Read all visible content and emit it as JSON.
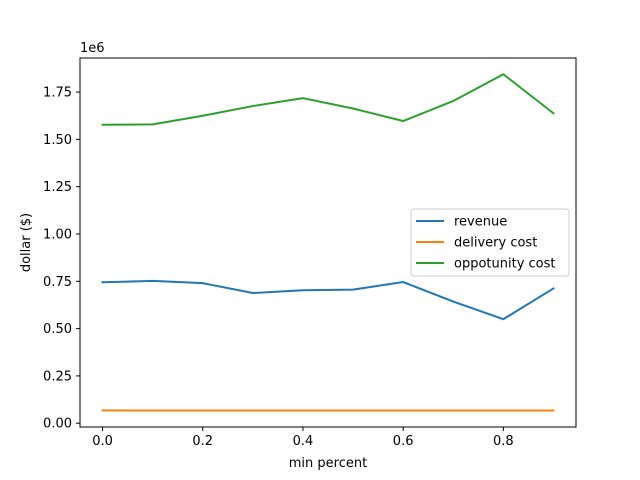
{
  "chart_data": {
    "type": "line",
    "title": "",
    "xlabel": "min percent",
    "ylabel": "dollar ($)",
    "y_multiplier_label": "1e6",
    "xlim": [
      -0.045,
      0.945
    ],
    "ylim": [
      -0.02,
      1.93
    ],
    "x_ticks": [
      0.0,
      0.2,
      0.4,
      0.6,
      0.8
    ],
    "x_tick_labels": [
      "0.0",
      "0.2",
      "0.4",
      "0.6",
      "0.8"
    ],
    "y_ticks": [
      0.0,
      0.25,
      0.5,
      0.75,
      1.0,
      1.25,
      1.5,
      1.75
    ],
    "y_tick_labels": [
      "0.00",
      "0.25",
      "0.50",
      "0.75",
      "1.00",
      "1.25",
      "1.50",
      "1.75"
    ],
    "grid": false,
    "legend_position": "center-right",
    "x": [
      0.0,
      0.1,
      0.2,
      0.3,
      0.4,
      0.5,
      0.6,
      0.7,
      0.8,
      0.9
    ],
    "series": [
      {
        "name": "revenue",
        "color": "#1f77b4",
        "values": [
          0.745,
          0.752,
          0.74,
          0.688,
          0.703,
          0.706,
          0.746,
          0.643,
          0.55,
          0.712
        ]
      },
      {
        "name": "delivery cost",
        "color": "#ff7f0e",
        "values": [
          0.068,
          0.067,
          0.067,
          0.067,
          0.067,
          0.067,
          0.067,
          0.067,
          0.067,
          0.067
        ]
      },
      {
        "name": "oppotunity cost",
        "color": "#2ca02c",
        "values": [
          1.577,
          1.579,
          1.625,
          1.676,
          1.718,
          1.663,
          1.597,
          1.703,
          1.844,
          1.638
        ]
      }
    ]
  }
}
